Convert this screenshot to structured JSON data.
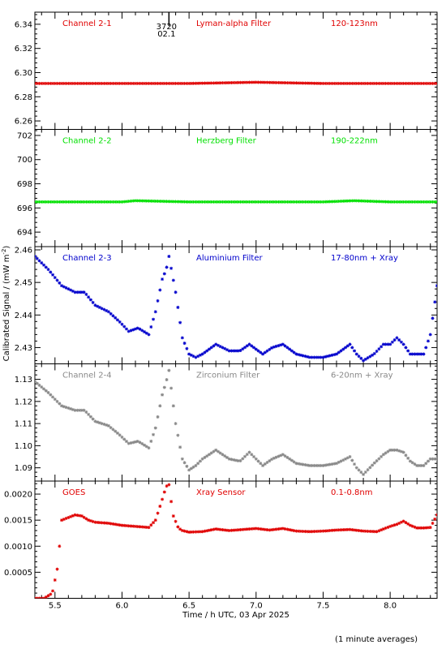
{
  "footnote": "(1 minute averages)",
  "xlabel": "Time / h UTC, 03 Apr 2025",
  "ylabel": "Calibrated Signal / (mW m^-2)",
  "ylabel_parts": {
    "main": "Calibrated Signal / (mW m",
    "exp": "-2",
    "close": ")"
  },
  "marker": {
    "label_top": "3720",
    "label_bottom": "02.1",
    "x": 6.35
  },
  "colors": {
    "red": "#e00000",
    "green": "#00e000",
    "blue": "#0000cc",
    "gray": "#888888"
  },
  "chart_data": [
    {
      "type": "scatter",
      "name": "Channel 2-1",
      "filter": "Lyman-alpha Filter",
      "band": "120-123nm",
      "color": "#e00000",
      "xlim": [
        5.35,
        8.35
      ],
      "ylim": [
        6.253,
        6.35
      ],
      "yticks": [
        6.26,
        6.28,
        6.3,
        6.32,
        6.34
      ],
      "ytick_labels": [
        "6.26",
        "6.28",
        "6.30",
        "6.32",
        "6.34"
      ],
      "x": [
        5.35,
        5.5,
        6.0,
        6.5,
        7.0,
        7.5,
        8.0,
        8.35
      ],
      "y": [
        6.291,
        6.291,
        6.291,
        6.291,
        6.292,
        6.291,
        6.291,
        6.291
      ]
    },
    {
      "type": "scatter",
      "name": "Channel 2-2",
      "filter": "Herzberg Filter",
      "band": "190-222nm",
      "color": "#00e000",
      "xlim": [
        5.35,
        8.35
      ],
      "ylim": [
        692.8,
        702.5
      ],
      "yticks": [
        694,
        696,
        698,
        700,
        702
      ],
      "ytick_labels": [
        "694",
        "696",
        "698",
        "700",
        "702"
      ],
      "x": [
        5.35,
        5.5,
        6.0,
        6.1,
        6.5,
        7.0,
        7.5,
        7.73,
        8.0,
        8.35
      ],
      "y": [
        696.5,
        696.5,
        696.5,
        696.6,
        696.5,
        696.5,
        696.5,
        696.6,
        696.5,
        696.5
      ]
    },
    {
      "type": "scatter",
      "name": "Channel 2-3",
      "filter": "Aluminium Filter",
      "band": "17-80nm + Xray",
      "color": "#0000cc",
      "xlim": [
        5.35,
        8.35
      ],
      "ylim": [
        2.425,
        2.461
      ],
      "yticks": [
        2.43,
        2.44,
        2.45,
        2.46
      ],
      "ytick_labels": [
        "2.43",
        "2.44",
        "2.45",
        "2.46"
      ],
      "x": [
        5.35,
        5.45,
        5.55,
        5.65,
        5.72,
        5.8,
        5.9,
        5.98,
        6.05,
        6.12,
        6.2,
        6.25,
        6.28,
        6.3,
        6.33,
        6.35,
        6.4,
        6.45,
        6.5,
        6.55,
        6.6,
        6.7,
        6.8,
        6.88,
        6.95,
        7.05,
        7.12,
        7.2,
        7.3,
        7.4,
        7.5,
        7.6,
        7.7,
        7.75,
        7.8,
        7.88,
        7.95,
        8.0,
        8.05,
        8.1,
        8.15,
        8.2,
        8.25,
        8.3,
        8.35
      ],
      "y": [
        2.458,
        2.454,
        2.449,
        2.447,
        2.447,
        2.443,
        2.441,
        2.438,
        2.435,
        2.436,
        2.434,
        2.441,
        2.447,
        2.451,
        2.454,
        2.458,
        2.447,
        2.433,
        2.428,
        2.427,
        2.428,
        2.431,
        2.429,
        2.429,
        2.431,
        2.428,
        2.43,
        2.431,
        2.428,
        2.427,
        2.427,
        2.428,
        2.431,
        2.428,
        2.426,
        2.428,
        2.431,
        2.431,
        2.433,
        2.431,
        2.428,
        2.428,
        2.428,
        2.434,
        2.449
      ]
    },
    {
      "type": "scatter",
      "name": "Channel 2-4",
      "filter": "Zirconium Filter",
      "band": "6-20nm + Xray",
      "color": "#888888",
      "xlim": [
        5.35,
        8.35
      ],
      "ylim": [
        1.084,
        1.137
      ],
      "yticks": [
        1.09,
        1.1,
        1.11,
        1.12,
        1.13
      ],
      "ytick_labels": [
        "1.09",
        "1.10",
        "1.11",
        "1.12",
        "1.13"
      ],
      "x": [
        5.35,
        5.45,
        5.55,
        5.65,
        5.72,
        5.8,
        5.9,
        5.98,
        6.05,
        6.12,
        6.2,
        6.25,
        6.28,
        6.3,
        6.33,
        6.35,
        6.4,
        6.45,
        6.5,
        6.55,
        6.6,
        6.7,
        6.8,
        6.88,
        6.95,
        7.05,
        7.12,
        7.2,
        7.3,
        7.4,
        7.5,
        7.6,
        7.7,
        7.75,
        7.8,
        7.88,
        7.95,
        8.0,
        8.05,
        8.1,
        8.15,
        8.2,
        8.25,
        8.3,
        8.35
      ],
      "y": [
        1.129,
        1.124,
        1.118,
        1.116,
        1.116,
        1.111,
        1.109,
        1.105,
        1.101,
        1.102,
        1.099,
        1.108,
        1.117,
        1.123,
        1.129,
        1.134,
        1.11,
        1.094,
        1.089,
        1.091,
        1.094,
        1.098,
        1.094,
        1.093,
        1.097,
        1.091,
        1.094,
        1.096,
        1.092,
        1.091,
        1.091,
        1.092,
        1.095,
        1.09,
        1.087,
        1.092,
        1.096,
        1.098,
        1.098,
        1.097,
        1.093,
        1.091,
        1.091,
        1.094,
        1.094
      ]
    },
    {
      "type": "scatter",
      "name": "GOES",
      "filter": "Xray Sensor",
      "band": "0.1-0.8nm",
      "color": "#e00000",
      "xlim": [
        5.35,
        8.35
      ],
      "ylim": [
        0.0,
        0.00225
      ],
      "yticks": [
        0.0005,
        0.001,
        0.0015,
        0.002
      ],
      "ytick_labels": [
        "0.0005",
        "0.0010",
        "0.0015",
        "0.0020"
      ],
      "x": [
        5.35,
        5.42,
        5.48,
        5.52,
        5.55,
        5.6,
        5.65,
        5.7,
        5.75,
        5.8,
        5.9,
        6.0,
        6.1,
        6.2,
        6.25,
        6.3,
        6.33,
        6.35,
        6.38,
        6.42,
        6.45,
        6.5,
        6.6,
        6.7,
        6.8,
        6.9,
        7.0,
        7.1,
        7.2,
        7.3,
        7.4,
        7.5,
        7.6,
        7.7,
        7.8,
        7.9,
        8.0,
        8.05,
        8.1,
        8.15,
        8.2,
        8.25,
        8.3,
        8.35
      ],
      "y": [
        0.0,
        0.0,
        0.0001,
        0.0006,
        0.0015,
        0.00155,
        0.0016,
        0.00158,
        0.0015,
        0.00146,
        0.00144,
        0.0014,
        0.00138,
        0.00136,
        0.0015,
        0.0019,
        0.00215,
        0.00218,
        0.0016,
        0.00135,
        0.0013,
        0.00127,
        0.00128,
        0.00133,
        0.0013,
        0.00132,
        0.00134,
        0.00131,
        0.00134,
        0.00129,
        0.00128,
        0.00129,
        0.00131,
        0.00132,
        0.00129,
        0.00128,
        0.00138,
        0.00142,
        0.00148,
        0.0014,
        0.00135,
        0.00135,
        0.00136,
        0.0016
      ]
    }
  ],
  "x_axis": {
    "ticks": [
      5.5,
      6.0,
      6.5,
      7.0,
      7.5,
      8.0
    ],
    "tick_labels": [
      "5.5",
      "6.0",
      "6.5",
      "7.0",
      "7.5",
      "8.0"
    ],
    "minor_step": 0.1
  }
}
